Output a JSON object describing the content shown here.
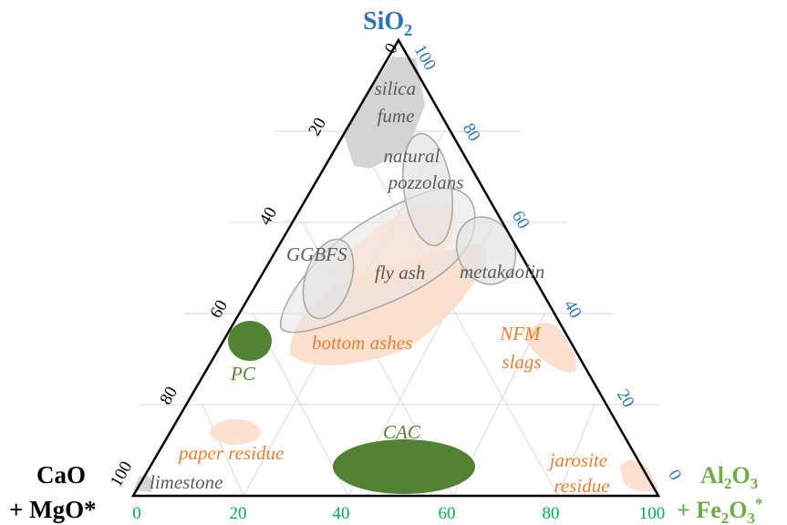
{
  "colors": {
    "sio2": "#2e75b6",
    "al2o3": "#70ad47",
    "al2o3_ticks": "#00b050",
    "cao": "#000000",
    "grey_label": "#5a5a5a",
    "orange_label": "#ed7d31",
    "green_label": "#548235",
    "grey_fill": "#e3e3e3",
    "grey_stroke": "#a6a6a6",
    "orange_fill": "#fbe0cf",
    "green_fill": "#548235"
  },
  "corners": {
    "sio2": {
      "main": "SiO",
      "sub": "2"
    },
    "cao": {
      "line1": "CaO",
      "line2": "+ MgO*"
    },
    "al2o3": {
      "line1_a": "Al",
      "line1_sub1": "2",
      "line1_b": "O",
      "line1_sub2": "3",
      "line2_a": "+ Fe",
      "line2_sub1": "2",
      "line2_b": "O",
      "line2_sub2": "3",
      "line2_sup": "*"
    }
  },
  "ticks": {
    "left_cao": [
      "0",
      "20",
      "40",
      "60",
      "80",
      "100"
    ],
    "right_sio2": [
      "100",
      "80",
      "60",
      "40",
      "20",
      "0"
    ],
    "bottom_al2o3": [
      "0",
      "20",
      "40",
      "60",
      "80",
      "100"
    ]
  },
  "regions": {
    "silica_fume": [
      "silica",
      "fume"
    ],
    "natural_pozzolans": [
      "natural",
      "pozzolans"
    ],
    "ggbfs": "GGBFS",
    "fly_ash": "fly ash",
    "metakaolin": "metakaolin",
    "bottom_ashes": "bottom ashes",
    "nfm_slags": [
      "NFM",
      "slags"
    ],
    "pc": "PC",
    "cac": "CAC",
    "paper_residue": "paper residue",
    "limestone": "limestone",
    "jarosite_residue": [
      "jarosite",
      "residue"
    ]
  }
}
